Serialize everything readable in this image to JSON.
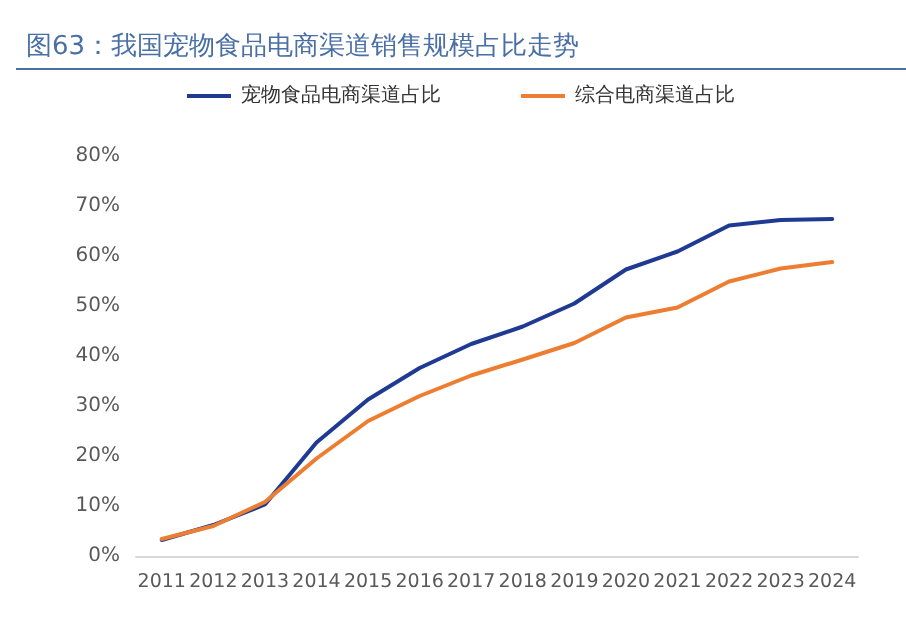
{
  "chart_data": {
    "type": "line",
    "title": "图63：我国宠物食品电商渠道销售规模占比走势",
    "categories": [
      "2011",
      "2012",
      "2013",
      "2014",
      "2015",
      "2016",
      "2017",
      "2018",
      "2019",
      "2020",
      "2021",
      "2022",
      "2023",
      "2024"
    ],
    "series": [
      {
        "name": "宠物食品电商渠道占比",
        "color": "#1f3a93",
        "values": [
          3.2,
          6.2,
          10.3,
          22.7,
          31.3,
          37.6,
          42.4,
          45.9,
          50.5,
          57.3,
          60.9,
          66.1,
          67.2,
          67.4
        ]
      },
      {
        "name": "综合电商渠道占比",
        "color": "#ed7d31",
        "values": [
          3.4,
          6.0,
          10.8,
          19.5,
          27.0,
          32.0,
          36.1,
          39.3,
          42.6,
          47.7,
          49.7,
          54.9,
          57.5,
          58.8
        ]
      }
    ],
    "ylim": [
      0,
      80
    ],
    "yticks": [
      {
        "value": 0,
        "label": "0%"
      },
      {
        "value": 10,
        "label": "10%"
      },
      {
        "value": 20,
        "label": "20%"
      },
      {
        "value": 30,
        "label": "30%"
      },
      {
        "value": 40,
        "label": "40%"
      },
      {
        "value": 50,
        "label": "50%"
      },
      {
        "value": 60,
        "label": "60%"
      },
      {
        "value": 70,
        "label": "70%"
      },
      {
        "value": 80,
        "label": "80%"
      }
    ],
    "grid": false,
    "legend": "top",
    "marker": "none",
    "line_style": "solid"
  }
}
